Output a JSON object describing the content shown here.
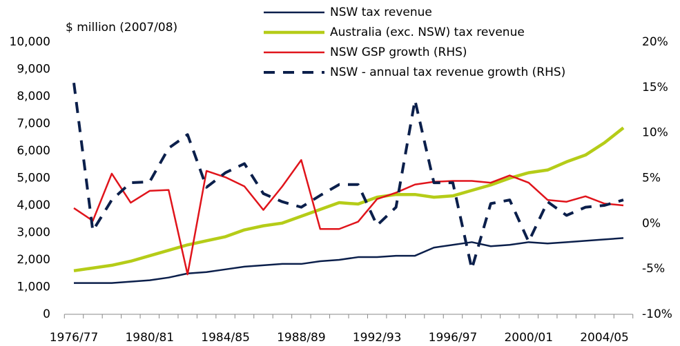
{
  "chart_data": {
    "type": "line",
    "y_axis_label": "$ million (2007/08)",
    "categories": [
      "1976/77",
      null,
      null,
      null,
      "1980/81",
      null,
      null,
      null,
      "1984/85",
      null,
      null,
      null,
      "1988/89",
      null,
      null,
      null,
      "1992/93",
      null,
      null,
      null,
      "1996/97",
      null,
      null,
      null,
      "2000/01",
      null,
      null,
      null,
      "2004/05",
      null
    ],
    "series": [
      {
        "name": "NSW tax revenue",
        "color": "#0b1f4b",
        "style": "solid",
        "values": [
          1150,
          1150,
          1150,
          1200,
          1250,
          1350,
          1500,
          1550,
          1650,
          1750,
          1800,
          1850,
          1850,
          1950,
          2000,
          2100,
          2100,
          2150,
          2150,
          2450,
          2550,
          2650,
          2500,
          2550,
          2650,
          2600,
          2650,
          2700,
          2750,
          2800
        ]
      },
      {
        "name": "Australia (exc. NSW) tax revenue",
        "color": "#b5cc18",
        "style": "thick",
        "values": [
          1600,
          1700,
          1800,
          1950,
          2150,
          2350,
          2550,
          2700,
          2850,
          3100,
          3250,
          3350,
          3600,
          3850,
          4100,
          4050,
          4300,
          4400,
          4400,
          4300,
          4350,
          4550,
          4750,
          5000,
          5200,
          5300,
          5600,
          5850,
          6300,
          6850
        ]
      },
      {
        "name": "NSW GSP growth (RHS)",
        "color": "#e0141b",
        "style": "solid",
        "axis": "y2",
        "values": [
          1.7,
          0.3,
          5.5,
          2.3,
          3.6,
          3.7,
          -5.6,
          5.8,
          5.1,
          4.1,
          1.5,
          4.1,
          7.0,
          -0.6,
          -0.6,
          0.2,
          2.7,
          3.4,
          4.3,
          4.6,
          4.7,
          4.7,
          4.5,
          5.3,
          4.5,
          2.6,
          2.4,
          3.0,
          2.2,
          2.0
        ]
      },
      {
        "name": "NSW - annual tax revenue growth (RHS)",
        "color": "#0b1f4b",
        "style": "dashed",
        "axis": "y2",
        "values": [
          15.5,
          -0.8,
          2.6,
          4.5,
          4.6,
          8.3,
          9.8,
          4.0,
          5.6,
          6.6,
          3.3,
          2.4,
          1.8,
          3.1,
          4.3,
          4.3,
          -0.2,
          1.8,
          13.6,
          4.5,
          4.5,
          -5.0,
          2.2,
          2.6,
          -2.0,
          2.4,
          0.9,
          1.8,
          2.0,
          2.6
        ]
      }
    ],
    "ylim": [
      0,
      10000
    ],
    "yticks": [
      0,
      {
        "value": 1000,
        "label": "1,000"
      },
      {
        "value": 2000,
        "label": "2,000"
      },
      {
        "value": 3000,
        "label": "3,000"
      },
      {
        "value": 4000,
        "label": "4,000"
      },
      {
        "value": 5000,
        "label": "5,000"
      },
      {
        "value": 6000,
        "label": "6,000"
      },
      {
        "value": 7000,
        "label": "7,000"
      },
      {
        "value": 8000,
        "label": "8,000"
      },
      {
        "value": 9000,
        "label": "9,000"
      },
      {
        "value": 10000,
        "label": "10,000"
      }
    ],
    "y2lim": [
      -10,
      20
    ],
    "y2ticks": [
      {
        "value": -10,
        "label": "-10%"
      },
      {
        "value": -5,
        "label": "-5%"
      },
      {
        "value": 0,
        "label": "0%"
      },
      {
        "value": 5,
        "label": "5%"
      },
      {
        "value": 10,
        "label": "10%"
      },
      {
        "value": 15,
        "label": "15%"
      },
      {
        "value": 20,
        "label": "20%"
      }
    ],
    "grid": false,
    "legend": "top"
  }
}
